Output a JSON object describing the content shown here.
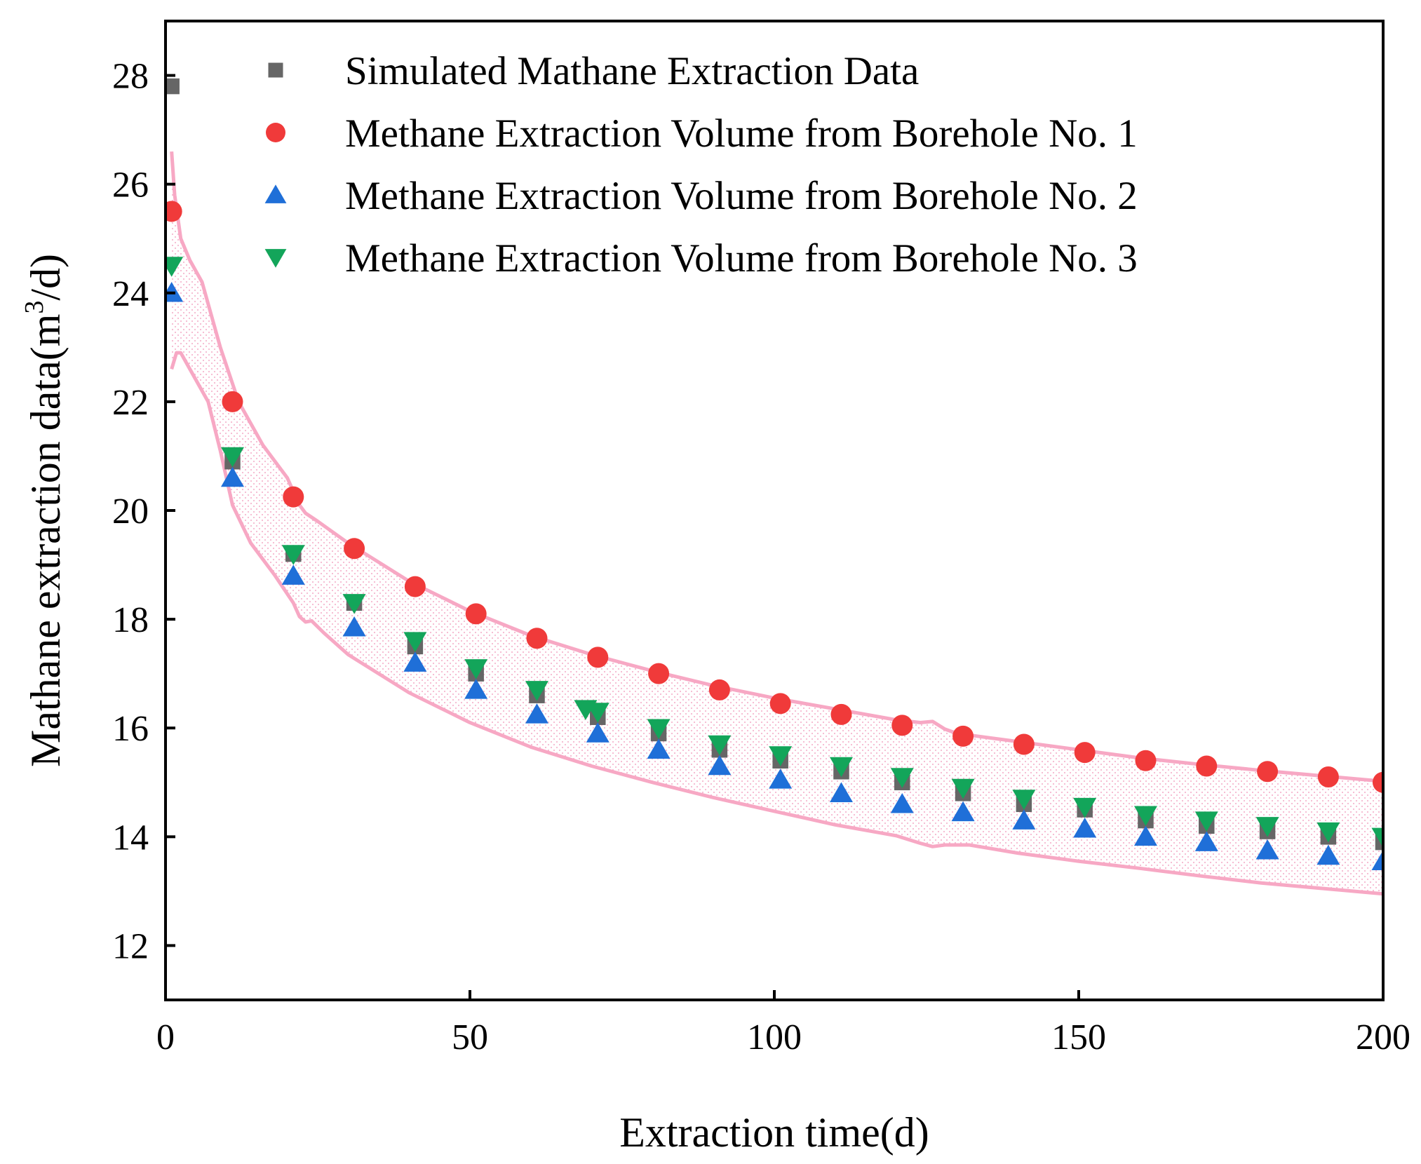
{
  "chart_data": {
    "type": "scatter",
    "title": "",
    "xlabel": "Extraction time(d)",
    "ylabel": "Mathane extraction data(m³/d)",
    "ylabel_main": "Mathane extraction data(m",
    "ylabel_sup": "3",
    "ylabel_tail": "/d)",
    "xlim": [
      0,
      200
    ],
    "ylim": [
      11,
      29
    ],
    "xticks": [
      0,
      50,
      100,
      150,
      200
    ],
    "yticks": [
      12,
      14,
      16,
      18,
      20,
      22,
      24,
      26,
      28
    ],
    "grid": false,
    "legend_position": "top-right",
    "series": [
      {
        "name": "Simulated Mathane Extraction Data",
        "marker": "square",
        "color": "#666666",
        "x": [
          1,
          11,
          21,
          31,
          41,
          51,
          61,
          71,
          81,
          91,
          101,
          111,
          121,
          131,
          141,
          151,
          161,
          171,
          181,
          191,
          200
        ],
        "y": [
          27.8,
          20.9,
          19.2,
          18.3,
          17.5,
          17.0,
          16.6,
          16.2,
          15.9,
          15.6,
          15.4,
          15.2,
          15.0,
          14.8,
          14.6,
          14.5,
          14.3,
          14.2,
          14.1,
          14.0,
          13.9
        ]
      },
      {
        "name": "Methane Extraction Volume from Borehole No. 1",
        "marker": "circle",
        "color": "#f03a3a",
        "x": [
          1,
          11,
          21,
          31,
          41,
          51,
          61,
          71,
          81,
          91,
          101,
          111,
          121,
          131,
          141,
          151,
          161,
          171,
          181,
          191,
          200
        ],
        "y": [
          25.5,
          22.0,
          20.25,
          19.3,
          18.6,
          18.1,
          17.65,
          17.3,
          17.0,
          16.7,
          16.45,
          16.25,
          16.05,
          15.85,
          15.7,
          15.55,
          15.4,
          15.3,
          15.2,
          15.1,
          15.0
        ]
      },
      {
        "name": "Methane Extraction Volume from Borehole No. 2",
        "marker": "triangle-up",
        "color": "#1f6fd8",
        "x": [
          1,
          11,
          21,
          31,
          41,
          51,
          61,
          71,
          81,
          91,
          101,
          111,
          121,
          131,
          141,
          151,
          161,
          171,
          181,
          191,
          200
        ],
        "y": [
          24.0,
          20.6,
          18.8,
          17.85,
          17.2,
          16.7,
          16.25,
          15.9,
          15.6,
          15.3,
          15.05,
          14.8,
          14.6,
          14.45,
          14.3,
          14.15,
          14.0,
          13.9,
          13.75,
          13.65,
          13.55
        ]
      },
      {
        "name": "Methane Extraction Volume from Borehole No. 3",
        "marker": "triangle-down",
        "color": "#13a55a",
        "x": [
          1,
          11,
          21,
          31,
          41,
          51,
          61,
          69,
          71,
          81,
          91,
          101,
          111,
          121,
          131,
          141,
          151,
          161,
          171,
          181,
          191,
          200
        ],
        "y": [
          24.5,
          21.0,
          19.2,
          18.3,
          17.6,
          17.1,
          16.7,
          16.35,
          16.3,
          16.0,
          15.7,
          15.5,
          15.3,
          15.1,
          14.9,
          14.7,
          14.55,
          14.4,
          14.3,
          14.2,
          14.1,
          14.0
        ]
      }
    ],
    "bands": [
      {
        "name": "upper envelope",
        "color": "#f7a8c4",
        "x": [
          1,
          1.5,
          2.5,
          4,
          6,
          9,
          12,
          16,
          20,
          21,
          22,
          23,
          25,
          30,
          40,
          50,
          60,
          70,
          80,
          90,
          100,
          110,
          120,
          124,
          126,
          128,
          130,
          140,
          150,
          160,
          170,
          180,
          190,
          200
        ],
        "y": [
          26.6,
          25.8,
          25.0,
          24.6,
          24.2,
          23.0,
          22.0,
          21.2,
          20.6,
          20.35,
          20.1,
          19.95,
          19.8,
          19.4,
          18.7,
          18.15,
          17.7,
          17.35,
          17.05,
          16.78,
          16.55,
          16.35,
          16.15,
          16.1,
          16.12,
          15.98,
          15.9,
          15.75,
          15.6,
          15.45,
          15.33,
          15.22,
          15.12,
          15.02
        ]
      },
      {
        "name": "lower envelope",
        "color": "#f7a8c4",
        "x": [
          1,
          1.8,
          2.5,
          3.5,
          5,
          7,
          9,
          11,
          14,
          18,
          21,
          22,
          23,
          24,
          26,
          30,
          40,
          50,
          60,
          70,
          80,
          90,
          100,
          110,
          120,
          124,
          126,
          128,
          132,
          140,
          150,
          160,
          170,
          180,
          190,
          200
        ],
        "y": [
          22.6,
          22.9,
          22.9,
          22.7,
          22.4,
          22.0,
          21.1,
          20.1,
          19.4,
          18.8,
          18.3,
          18.05,
          17.95,
          17.97,
          17.75,
          17.35,
          16.65,
          16.1,
          15.65,
          15.3,
          15.0,
          14.72,
          14.47,
          14.22,
          14.02,
          13.88,
          13.82,
          13.85,
          13.85,
          13.7,
          13.55,
          13.42,
          13.28,
          13.15,
          13.05,
          12.95
        ]
      }
    ]
  }
}
